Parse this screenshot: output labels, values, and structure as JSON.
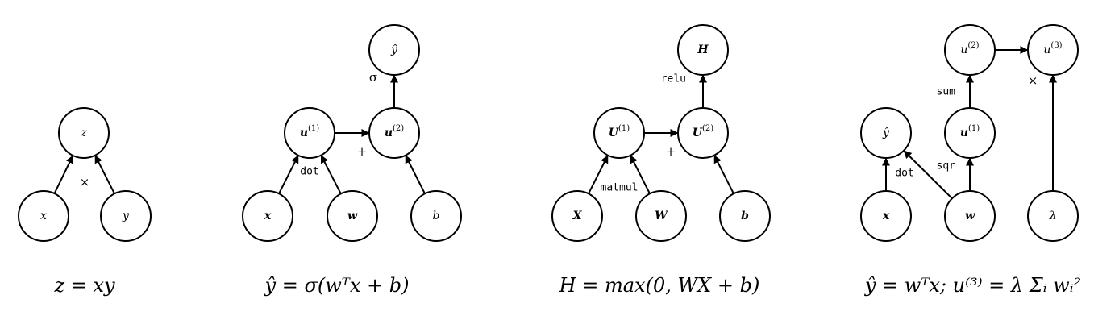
{
  "diagrams": [
    {
      "id": "a",
      "nodes": [
        {
          "id": "z",
          "label": "z",
          "bold": false,
          "sup": ""
        },
        {
          "id": "x",
          "label": "x",
          "bold": false,
          "sup": ""
        },
        {
          "id": "y",
          "label": "y",
          "bold": false,
          "sup": ""
        }
      ],
      "ops": [
        {
          "id": "op1",
          "label": "×",
          "mono": false
        }
      ],
      "edges": [
        [
          "x",
          "z"
        ],
        [
          "y",
          "z"
        ]
      ],
      "formula": "z = xy"
    },
    {
      "id": "b",
      "nodes": [
        {
          "id": "yhat",
          "label": "ŷ",
          "bold": false,
          "sup": ""
        },
        {
          "id": "u1",
          "label": "u",
          "bold": true,
          "sup": "(1)"
        },
        {
          "id": "u2",
          "label": "u",
          "bold": true,
          "sup": "(2)"
        },
        {
          "id": "x",
          "label": "x",
          "bold": true,
          "sup": ""
        },
        {
          "id": "w",
          "label": "w",
          "bold": true,
          "sup": ""
        },
        {
          "id": "b",
          "label": "b",
          "bold": false,
          "sup": ""
        }
      ],
      "ops": [
        {
          "id": "sigma",
          "label": "σ",
          "mono": false
        },
        {
          "id": "plus",
          "label": "+",
          "mono": false
        },
        {
          "id": "dot",
          "label": "dot",
          "mono": true
        }
      ],
      "edges": [
        [
          "x",
          "u1"
        ],
        [
          "w",
          "u1"
        ],
        [
          "u1",
          "u2"
        ],
        [
          "b",
          "u2"
        ],
        [
          "u2",
          "yhat"
        ]
      ],
      "formula": "ŷ = σ(wᵀx + b)"
    },
    {
      "id": "c",
      "nodes": [
        {
          "id": "H",
          "label": "H",
          "bold": true,
          "sup": ""
        },
        {
          "id": "U1",
          "label": "U",
          "bold": true,
          "sup": "(1)"
        },
        {
          "id": "U2",
          "label": "U",
          "bold": true,
          "sup": "(2)"
        },
        {
          "id": "X",
          "label": "X",
          "bold": true,
          "sup": ""
        },
        {
          "id": "W",
          "label": "W",
          "bold": true,
          "sup": ""
        },
        {
          "id": "b",
          "label": "b",
          "bold": true,
          "sup": ""
        }
      ],
      "ops": [
        {
          "id": "relu",
          "label": "relu",
          "mono": true
        },
        {
          "id": "plus",
          "label": "+",
          "mono": false
        },
        {
          "id": "matmul",
          "label": "matmul",
          "mono": true
        }
      ],
      "edges": [
        [
          "X",
          "U1"
        ],
        [
          "W",
          "U1"
        ],
        [
          "U1",
          "U2"
        ],
        [
          "b",
          "U2"
        ],
        [
          "U2",
          "H"
        ]
      ],
      "formula": "H = max(0, WX + b)"
    },
    {
      "id": "d",
      "nodes": [
        {
          "id": "u2",
          "label": "u",
          "bold": false,
          "sup": "(2)"
        },
        {
          "id": "u3",
          "label": "u",
          "bold": false,
          "sup": "(3)"
        },
        {
          "id": "yhat",
          "label": "ŷ",
          "bold": false,
          "sup": ""
        },
        {
          "id": "u1",
          "label": "u",
          "bold": true,
          "sup": "(1)"
        },
        {
          "id": "x",
          "label": "x",
          "bold": true,
          "sup": ""
        },
        {
          "id": "w",
          "label": "w",
          "bold": true,
          "sup": ""
        },
        {
          "id": "lambda",
          "label": "λ",
          "bold": false,
          "sup": ""
        }
      ],
      "ops": [
        {
          "id": "sum",
          "label": "sum",
          "mono": true
        },
        {
          "id": "times",
          "label": "×",
          "mono": false
        },
        {
          "id": "sqr",
          "label": "sqr",
          "mono": true
        },
        {
          "id": "dot",
          "label": "dot",
          "mono": true
        }
      ],
      "edges": [
        [
          "x",
          "yhat"
        ],
        [
          "w",
          "yhat"
        ],
        [
          "w",
          "u1"
        ],
        [
          "u1",
          "u2"
        ],
        [
          "u2",
          "u3"
        ],
        [
          "lambda",
          "u3"
        ]
      ],
      "formula": "ŷ = wᵀx; u⁽³⁾ = λ Σᵢ wᵢ²"
    }
  ]
}
